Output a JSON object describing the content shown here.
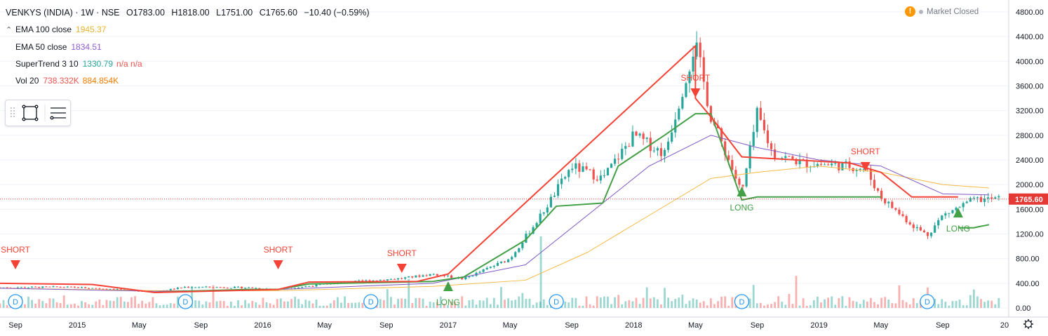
{
  "header": {
    "symbol": "VENKYS (INDIA) · 1W · NSE",
    "open": "O1783.00",
    "high": "H1818.00",
    "low": "L1751.00",
    "close": "C1765.60",
    "change": "−10.40 (−0.59%)"
  },
  "indicators": [
    {
      "label": "EMA 100 close",
      "value": "1945.37",
      "value2": "",
      "color": "#e8b32b",
      "color2": ""
    },
    {
      "label": "EMA 50 close",
      "value": "1834.51",
      "value2": "",
      "color": "#8e5bd0",
      "color2": ""
    },
    {
      "label": "SuperTrend 3 10",
      "value": "1330.79",
      "value2": "n/a n/a",
      "color": "#26a69a",
      "color2": "#ef5350"
    },
    {
      "label": "Vol 20",
      "value": "738.332K",
      "value2": "884.854K",
      "color": "#ef5350",
      "color2": "#f57c00"
    }
  ],
  "status": {
    "market": "Market Closed",
    "warning": "!"
  },
  "colors": {
    "up": "#26a69a",
    "down": "#ef5350",
    "ema100": "#f5b942",
    "ema50": "#7e57c2",
    "st_up": "#43a047",
    "st_down": "#f44336",
    "last": "#e53935"
  },
  "chart_data": {
    "type": "line",
    "ylim": [
      0,
      4800
    ],
    "y_ticks": [
      "4800.00",
      "4400.00",
      "4000.00",
      "3600.00",
      "3200.00",
      "2800.00",
      "2400.00",
      "2000.00",
      "1600.00",
      "1200.00",
      "800.00",
      "400.00",
      "0.00"
    ],
    "x_ticks": [
      "Sep",
      "2015",
      "May",
      "Sep",
      "2016",
      "May",
      "Sep",
      "2017",
      "May",
      "Sep",
      "2018",
      "May",
      "Sep",
      "2019",
      "May",
      "Sep",
      "20"
    ],
    "last_price": "1765.60",
    "series": [
      {
        "key": "close",
        "x": [
          "2014-08",
          "2014-12",
          "2015-04",
          "2015-06",
          "2015-08",
          "2015-12",
          "2016-02",
          "2016-06",
          "2016-10",
          "2016-12",
          "2017-02",
          "2017-05",
          "2017-07",
          "2017-09",
          "2017-11",
          "2018-01",
          "2018-03",
          "2018-05",
          "2018-06",
          "2018-07",
          "2018-08",
          "2018-09",
          "2018-10",
          "2018-12",
          "2019-03",
          "2019-04",
          "2019-05",
          "2019-07",
          "2019-08",
          "2019-09",
          "2019-11",
          "2019-12"
        ],
        "values": [
          330,
          340,
          300,
          260,
          340,
          330,
          300,
          410,
          480,
          550,
          470,
          800,
          1500,
          2300,
          2100,
          2800,
          2500,
          4300,
          3100,
          2500,
          1850,
          3150,
          2500,
          2350,
          2300,
          2250,
          1800,
          1350,
          1180,
          1500,
          1750,
          1765
        ]
      },
      {
        "key": "ema100",
        "x": [
          "2014-08",
          "2015-06",
          "2016-02",
          "2016-12",
          "2017-06",
          "2017-10",
          "2018-02",
          "2018-06",
          "2018-09",
          "2019-01",
          "2019-05",
          "2019-09",
          "2019-12"
        ],
        "values": [
          320,
          280,
          280,
          350,
          450,
          900,
          1500,
          2100,
          2200,
          2300,
          2200,
          2000,
          1945
        ]
      },
      {
        "key": "ema50",
        "x": [
          "2014-08",
          "2015-06",
          "2016-02",
          "2016-12",
          "2017-06",
          "2017-10",
          "2018-02",
          "2018-06",
          "2018-09",
          "2019-01",
          "2019-05",
          "2019-09",
          "2019-12"
        ],
        "values": [
          320,
          270,
          300,
          400,
          700,
          1500,
          2300,
          2800,
          2600,
          2400,
          2300,
          1850,
          1834
        ]
      },
      {
        "key": "supertrend_up",
        "x": [
          "2015-06",
          "2015-08",
          "2015-12",
          "2016-02",
          "2016-04",
          "2016-12",
          "2017-02",
          "2017-06",
          "2017-08",
          "2017-11",
          "2017-12",
          "2018-03",
          "2018-05",
          "2018-06",
          "2018-08",
          "2018-09",
          "2019-05"
        ],
        "values": [
          250,
          270,
          300,
          300,
          390,
          430,
          500,
          1100,
          1650,
          1700,
          2300,
          2800,
          3150,
          3150,
          1750,
          1800,
          1800
        ]
      },
      {
        "key": "supertrend_up2",
        "x": [
          "2019-10",
          "2019-11",
          "2019-12"
        ],
        "values": [
          1300,
          1300,
          1350
        ]
      },
      {
        "key": "supertrend_down",
        "x": [
          "2014-08",
          "2015-02",
          "2015-06",
          "2016-02",
          "2016-04",
          "2016-11",
          "2017-01",
          "2018-05",
          "2018-05",
          "2018-06",
          "2018-08",
          "2019-03",
          "2019-05",
          "2019-07",
          "2019-10"
        ],
        "values": [
          400,
          380,
          250,
          300,
          420,
          430,
          550,
          4250,
          3400,
          3100,
          2450,
          2350,
          2200,
          1800,
          1800
        ]
      }
    ],
    "volume": {
      "avg_color": "#f57c00"
    },
    "markers": [
      {
        "label": "SHORT",
        "x": "2014-09"
      },
      {
        "label": "SHORT",
        "x": "2016-02"
      },
      {
        "label": "SHORT",
        "x": "2016-10"
      },
      {
        "label": "SHORT",
        "x": "2018-05"
      },
      {
        "label": "SHORT",
        "x": "2019-04"
      },
      {
        "label": "LONG",
        "x": "2017-01"
      },
      {
        "label": "LONG",
        "x": "2018-08"
      },
      {
        "label": "LONG",
        "x": "2019-10"
      }
    ],
    "dividend_badge": "D",
    "dividends": [
      "2014-09",
      "2015-08",
      "2016-08",
      "2017-08",
      "2018-08",
      "2019-08"
    ]
  }
}
